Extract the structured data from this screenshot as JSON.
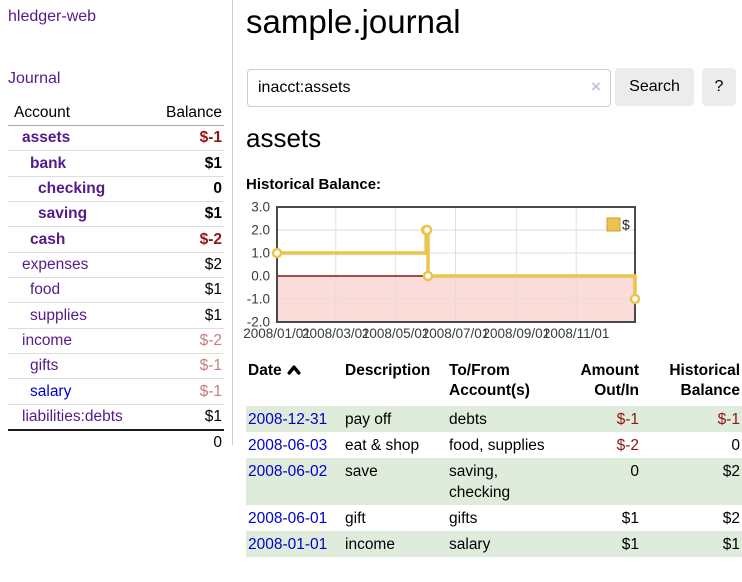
{
  "sidebar": {
    "app_title": "hledger-web",
    "journal_link": "Journal",
    "accounts_table": {
      "account_header": "Account",
      "balance_header": "Balance",
      "rows": [
        {
          "name": "assets",
          "balance": "$-1",
          "level": 1,
          "bold": true,
          "negative": true
        },
        {
          "name": "bank",
          "balance": "$1",
          "level": 2,
          "bold": true,
          "negative": false
        },
        {
          "name": "checking",
          "balance": "0",
          "level": 3,
          "bold": true,
          "negative": false
        },
        {
          "name": "saving",
          "balance": "$1",
          "level": 3,
          "bold": true,
          "negative": false
        },
        {
          "name": "cash",
          "balance": "$-2",
          "level": 2,
          "bold": true,
          "negative": true
        },
        {
          "name": "expenses",
          "balance": "$2",
          "level": 1,
          "bold": false,
          "negative": false
        },
        {
          "name": "food",
          "balance": "$1",
          "level": 2,
          "bold": false,
          "negative": false
        },
        {
          "name": "supplies",
          "balance": "$1",
          "level": 2,
          "bold": false,
          "negative": false
        },
        {
          "name": "income",
          "balance": "$-2",
          "level": 1,
          "bold": false,
          "negative": true
        },
        {
          "name": "gifts",
          "balance": "$-1",
          "level": 2,
          "bold": false,
          "negative": true
        },
        {
          "name": "salary",
          "balance": "$-1",
          "level": 2,
          "bold": false,
          "negative": true,
          "link_style": "blue"
        },
        {
          "name": "liabilities:debts",
          "balance": "$1",
          "level": 1,
          "bold": false,
          "negative": false,
          "last": true
        }
      ],
      "total": "0"
    }
  },
  "header": {
    "title": "sample.journal"
  },
  "search": {
    "value": "inacct:assets",
    "clear_icon": "×",
    "search_button": "Search",
    "help_button": "?"
  },
  "account_page": {
    "heading": "assets",
    "chart_title": "Historical Balance:"
  },
  "chart_data": {
    "type": "line",
    "line_style": "step",
    "title": "Historical Balance",
    "x_range": [
      "2008-01-01",
      "2008-12-31"
    ],
    "ylim": [
      -2,
      3
    ],
    "yticks": [
      {
        "value": 3,
        "label": "3.0"
      },
      {
        "value": 2,
        "label": "2.0"
      },
      {
        "value": 1,
        "label": "1.0"
      },
      {
        "value": 0,
        "label": "0.0"
      },
      {
        "value": -1,
        "label": "-1.0"
      },
      {
        "value": -2,
        "label": "-2.0"
      }
    ],
    "xticks": [
      {
        "date": "2008-01-01",
        "label": "2008/01/01"
      },
      {
        "date": "2008-03-01",
        "label": "2008/03/01"
      },
      {
        "date": "2008-05-01",
        "label": "2008/05/01"
      },
      {
        "date": "2008-07-01",
        "label": "2008/07/01"
      },
      {
        "date": "2008-09-01",
        "label": "2008/09/01"
      },
      {
        "date": "2008-11-01",
        "label": "2008/11/01"
      }
    ],
    "series": [
      {
        "name": "$",
        "points": [
          [
            "2008-01-01",
            1
          ],
          [
            "2008-06-01",
            2
          ],
          [
            "2008-06-02",
            2
          ],
          [
            "2008-06-03",
            0
          ],
          [
            "2008-12-31",
            -1
          ]
        ]
      }
    ],
    "legend": {
      "label": "$",
      "position": "top-right"
    },
    "grid": true,
    "colors": {
      "line": "#ecc44d",
      "marker_fill": "#ffffff",
      "negative_fill": "#fcdcd8",
      "zero_line": "#8b1414",
      "grid": "#dedede",
      "border": "#4a4a4a",
      "legend_border": "#c9a22e"
    }
  },
  "register_table": {
    "headers": {
      "date": "Date",
      "description": "Description",
      "accounts": "To/From Account(s)",
      "amount": "Amount Out/In",
      "balance": "Historical Balance"
    },
    "rows": [
      {
        "date": "2008-12-31",
        "description": "pay off",
        "accounts": "debts",
        "amount": "$-1",
        "balance": "$-1",
        "amount_negative": true,
        "balance_negative": true
      },
      {
        "date": "2008-06-03",
        "description": "eat & shop",
        "accounts": "food, supplies",
        "amount": "$-2",
        "balance": "0",
        "amount_negative": true,
        "balance_negative": false
      },
      {
        "date": "2008-06-02",
        "description": "save",
        "accounts": "saving, checking",
        "amount": "0",
        "balance": "$2",
        "amount_negative": false,
        "balance_negative": false
      },
      {
        "date": "2008-06-01",
        "description": "gift",
        "accounts": "gifts",
        "amount": "$1",
        "balance": "$2",
        "amount_negative": false,
        "balance_negative": false
      },
      {
        "date": "2008-01-01",
        "description": "income",
        "accounts": "salary",
        "amount": "$1",
        "balance": "$1",
        "amount_negative": false,
        "balance_negative": false
      }
    ]
  }
}
